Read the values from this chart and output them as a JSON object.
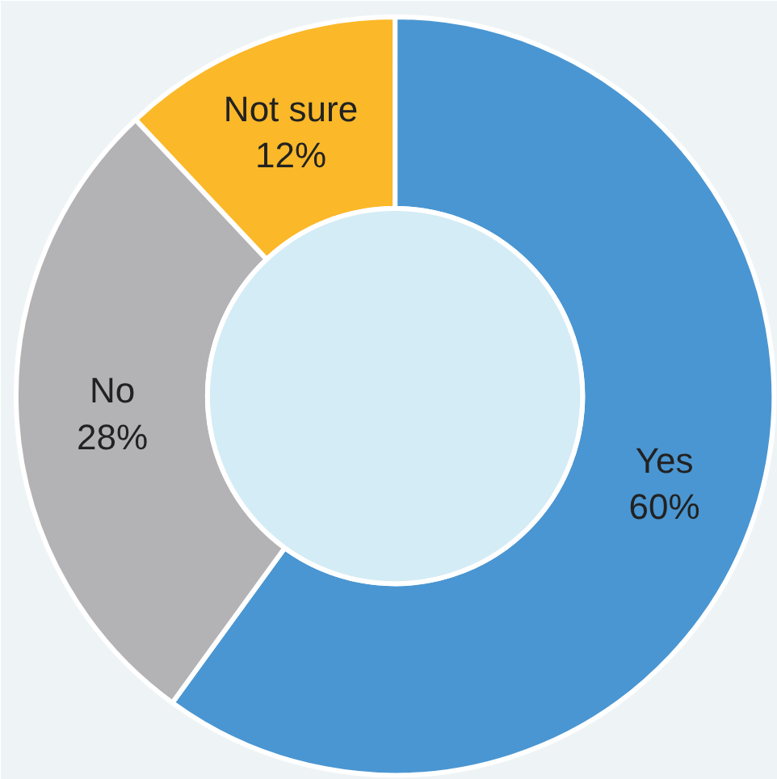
{
  "chart_data": {
    "type": "donut",
    "categories": [
      "Yes",
      "No",
      "Not sure"
    ],
    "values": [
      60,
      28,
      12
    ],
    "colors": [
      "#4a96d2",
      "#b3b3b5",
      "#fbb829"
    ],
    "value_labels": [
      "60%",
      "28%",
      "12%"
    ]
  }
}
